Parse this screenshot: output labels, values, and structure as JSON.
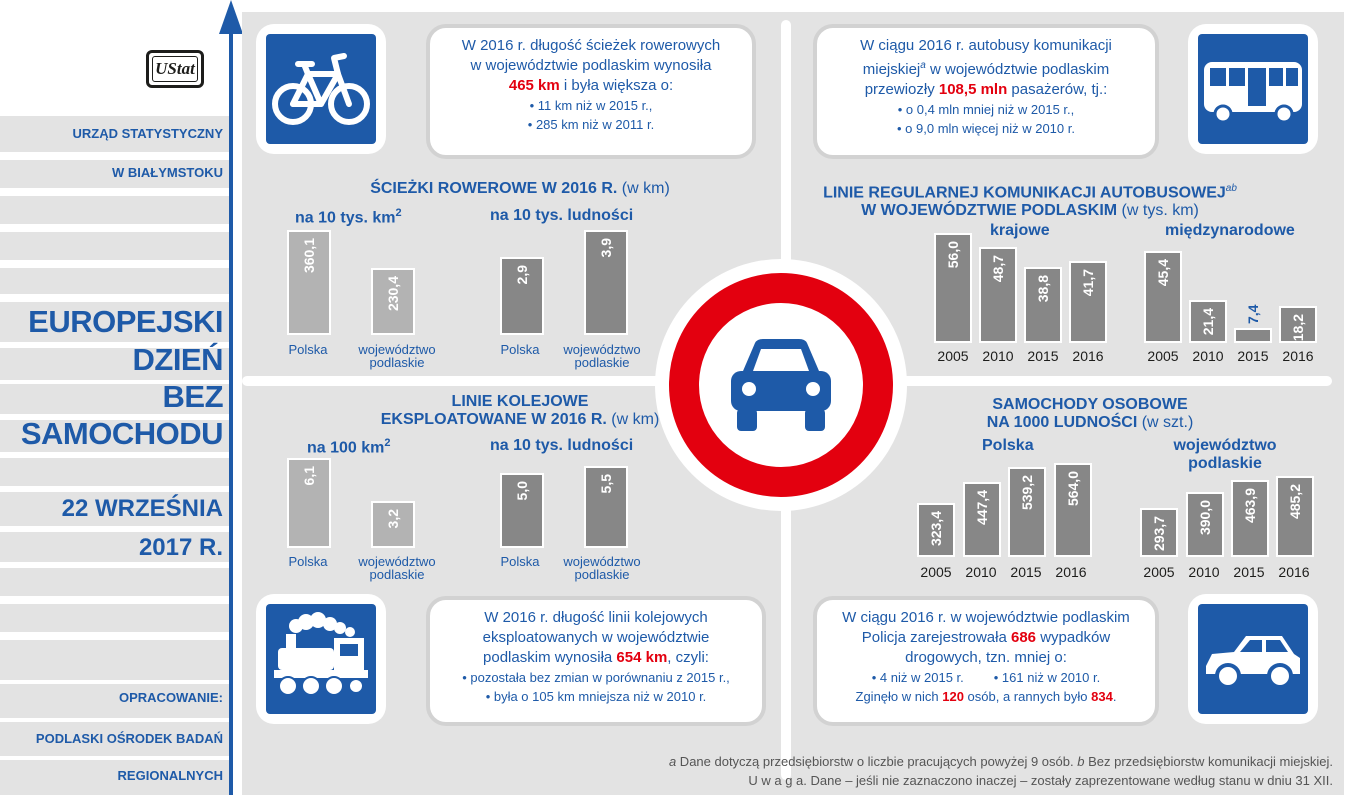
{
  "sidebar": {
    "org_line1": "URZĄD STATYSTYCZNY",
    "org_line2": "W BIAŁYMSTOKU",
    "title_lines": [
      "EUROPEJSKI",
      "DZIEŃ",
      "BEZ",
      "SAMOCHODU"
    ],
    "date_line1": "22 WRZEŚNIA",
    "date_line2": "2017 R.",
    "prepared_label": "OPRACOWANIE:",
    "prepared_line1": "PODLASKI OŚRODEK BADAŃ",
    "prepared_line2": "REGIONALNYCH",
    "logo_text": "UStat"
  },
  "icons": {
    "bicycle": "bicycle-icon",
    "bus": "bus-icon",
    "train": "steam-train-icon",
    "car": "car-icon",
    "sign": "no-motor-vehicles-sign-icon"
  },
  "colors": {
    "brand_blue": "#1e5aa8",
    "highlight_red": "#e3000f",
    "bar_light": "#b3b3b3",
    "bar_dark": "#878787",
    "panel_gray": "#e3e3e3"
  },
  "callouts": {
    "bike": {
      "line1": "W 2016 r. długość ścieżek rowerowych",
      "line2": "w województwie podlaskim wynosiła",
      "highlight": "465 km",
      "line3_rest": " i była większa o:",
      "bullet1": "• 11 km niż w 2015 r.,",
      "bullet2": "• 285 km niż w 2011 r."
    },
    "bus": {
      "line1": "W ciągu 2016 r. autobusy komunikacji",
      "line2_a": "miejskiej",
      "line2_sup": "a",
      "line2_b": " w województwie podlaskim",
      "line3_a": "przewiozły ",
      "highlight": "108,5 mln",
      "line3_b": " pasażerów, tj.:",
      "bullet1": "• o 0,4 mln mniej niż w 2015 r.,",
      "bullet2": "• o 9,0 mln więcej niż w 2010 r."
    },
    "rail": {
      "line1": "W 2016 r. długość linii kolejowych",
      "line2": "eksploatowanych w województwie",
      "line3_a": "podlaskim wynosiła ",
      "highlight": "654 km",
      "line3_b": ", czyli:",
      "bullet1": "• pozostała bez zmian w porównaniu z 2015 r.,",
      "bullet2": "• była o 105 km mniejsza niż w 2010 r."
    },
    "police": {
      "line1": "W ciągu 2016 r. w województwie podlaskim",
      "line2_a": "Policja zarejestrowała ",
      "highlight1": "686",
      "line2_b": " wypadków",
      "line3": "drogowych, tzn. mniej o:",
      "bullet1": "• 4 niż w 2015 r.",
      "bullet2": "• 161 niż w 2010 r.",
      "line5_a": "Zginęło w nich ",
      "highlight2": "120",
      "line5_b": " osób, a rannych było ",
      "highlight3": "834",
      "line5_c": "."
    }
  },
  "footnotes": {
    "line1_a": "a",
    "line1_b": " Dane dotyczą przedsiębiorstw o liczbie pracujących powyżej 9 osób. ",
    "line1_c": "b",
    "line1_d": " Bez przedsiębiorstw komunikacji miejskiej.",
    "line2": "U w a g a. Dane – jeśli nie zaznaczono inaczej – zostały zaprezentowane według stanu w dniu 31 XII."
  },
  "chart_data": [
    {
      "id": "bike",
      "type": "bar",
      "title": "ŚCIEŻKI ROWEROWE W 2016 R.",
      "unit": " (w km)",
      "panels": [
        {
          "label": "na 10 tys. km",
          "label_sup": "2",
          "categories": [
            "Polska",
            "województwo podlaskie"
          ],
          "values": [
            "360,1",
            "230,4"
          ]
        },
        {
          "label": "na 10 tys. ludności",
          "label_sup": "",
          "categories": [
            "Polska",
            "województwo podlaskie"
          ],
          "values": [
            "2,9",
            "3,9"
          ]
        }
      ]
    },
    {
      "id": "bus",
      "type": "bar",
      "title_line1": "LINIE REGULARNEJ KOMUNIKACJI AUTOBUSOWEJ",
      "title_sup": "ab",
      "title_line2": "W WOJEWÓDZTWIE PODLASKIM",
      "unit": " (w tys. km)",
      "panels": [
        {
          "label": "krajowe",
          "categories": [
            "2005",
            "2010",
            "2015",
            "2016"
          ],
          "values": [
            "56,0",
            "48,7",
            "38,8",
            "41,7"
          ]
        },
        {
          "label": "międzynarodowe",
          "categories": [
            "2005",
            "2010",
            "2015",
            "2016"
          ],
          "values": [
            "45,4",
            "21,4",
            "7,4",
            "18,2"
          ]
        }
      ]
    },
    {
      "id": "rail",
      "type": "bar",
      "title_line1": "LINIE KOLEJOWE",
      "title_line2": "EKSPLOATOWANE W 2016 R.",
      "unit": " (w km)",
      "panels": [
        {
          "label": "na 100 km",
          "label_sup": "2",
          "categories": [
            "Polska",
            "województwo podlaskie"
          ],
          "values": [
            "6,1",
            "3,2"
          ]
        },
        {
          "label": "na 10 tys. ludności",
          "label_sup": "",
          "categories": [
            "Polska",
            "województwo podlaskie"
          ],
          "values": [
            "5,0",
            "5,5"
          ]
        }
      ]
    },
    {
      "id": "cars",
      "type": "bar",
      "title_line1": "SAMOCHODY OSOBOWE",
      "title_line2": "NA 1000 LUDNOŚCI",
      "unit": " (w szt.)",
      "panels": [
        {
          "label": "Polska",
          "categories": [
            "2005",
            "2010",
            "2015",
            "2016"
          ],
          "values": [
            "323,4",
            "447,4",
            "539,2",
            "564,0"
          ]
        },
        {
          "label_line1": "województwo",
          "label_line2": "podlaskie",
          "categories": [
            "2005",
            "2010",
            "2015",
            "2016"
          ],
          "values": [
            "293,7",
            "390,0",
            "463,9",
            "485,2"
          ]
        }
      ]
    }
  ]
}
